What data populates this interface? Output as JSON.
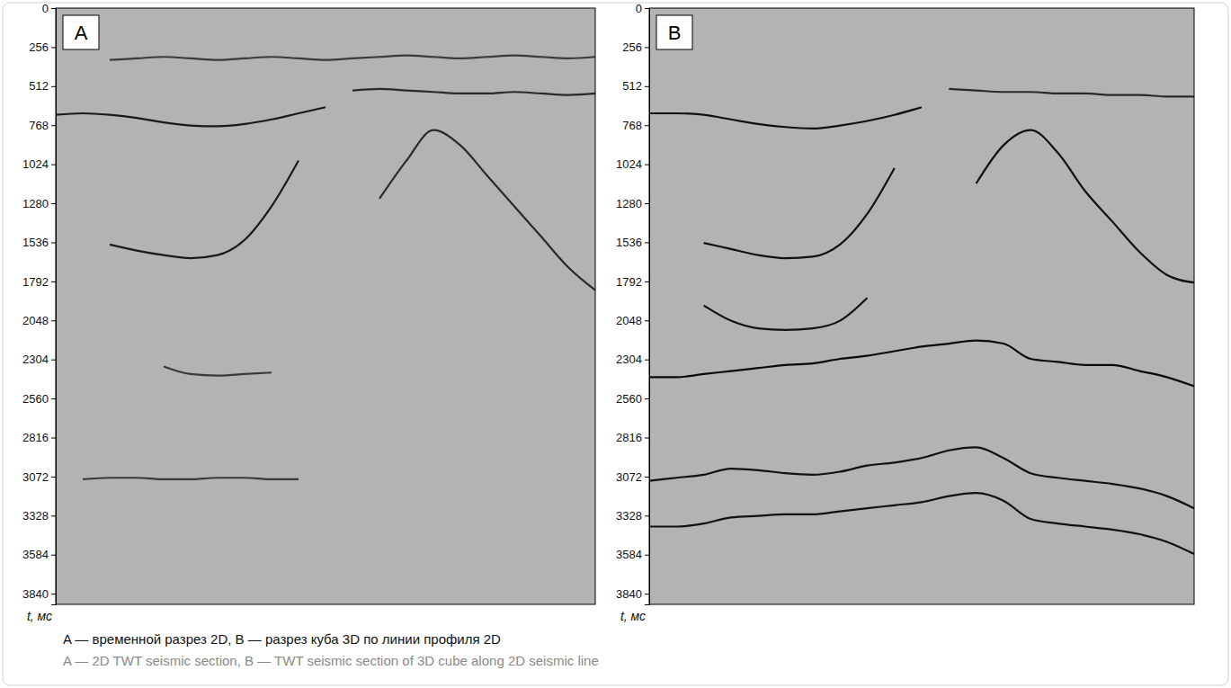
{
  "chart_data": [
    {
      "type": "line",
      "title": "A",
      "ylabel": "t, мс",
      "x": [
        0,
        5,
        10,
        15,
        20,
        25,
        30,
        35,
        40,
        45,
        50,
        55,
        60,
        65,
        70,
        75,
        80,
        85,
        90,
        95,
        100
      ],
      "xlim": [
        0,
        100
      ],
      "ylim": [
        0,
        3910
      ],
      "yticks": [
        0,
        256,
        512,
        768,
        1024,
        1280,
        1536,
        1792,
        2048,
        2304,
        2560,
        2816,
        3072,
        3328,
        3584,
        3840
      ],
      "tick_labels": "y",
      "series": [
        {
          "color": "#3a3a3a",
          "values": [
            null,
            null,
            340,
            330,
            320,
            330,
            340,
            330,
            320,
            330,
            340,
            330,
            320,
            310,
            320,
            330,
            320,
            310,
            320,
            330,
            320
          ]
        },
        {
          "color": "#2a2a2a",
          "values": [
            null,
            null,
            null,
            null,
            null,
            null,
            null,
            null,
            null,
            null,
            null,
            540,
            530,
            540,
            550,
            560,
            560,
            550,
            560,
            570,
            560
          ]
        },
        {
          "color": "#1a1a1a",
          "values": [
            700,
            690,
            700,
            720,
            750,
            770,
            775,
            760,
            730,
            690,
            650,
            null,
            null,
            null,
            null,
            null,
            null,
            null,
            null,
            null,
            null
          ]
        },
        {
          "color": "#2a2a2a",
          "values": [
            null,
            null,
            null,
            null,
            null,
            null,
            null,
            null,
            null,
            null,
            null,
            null,
            1250,
            1000,
            800,
            900,
            1100,
            1300,
            1500,
            1700,
            1850
          ]
        },
        {
          "color": "#1a1a1a",
          "values": [
            null,
            null,
            1550,
            1590,
            1620,
            1640,
            1620,
            1520,
            1300,
            1000,
            null,
            null,
            null,
            null,
            null,
            null,
            null,
            null,
            null,
            null,
            null
          ]
        },
        {
          "color": "#3a3a3a",
          "values": [
            null,
            null,
            null,
            null,
            2350,
            2400,
            2410,
            2400,
            2390,
            null,
            null,
            null,
            null,
            null,
            null,
            null,
            null,
            null,
            null,
            null,
            null
          ]
        },
        {
          "color": "#3a3a3a",
          "values": [
            null,
            3090,
            3080,
            3080,
            3090,
            3090,
            3080,
            3080,
            3090,
            3090,
            null,
            null,
            null,
            null,
            null,
            null,
            null,
            null,
            null,
            null,
            null
          ]
        }
      ]
    },
    {
      "type": "line",
      "title": "B",
      "ylabel": "t, мс",
      "x": [
        0,
        5,
        10,
        15,
        20,
        25,
        30,
        35,
        40,
        45,
        50,
        55,
        60,
        65,
        70,
        75,
        80,
        85,
        90,
        95,
        100
      ],
      "xlim": [
        0,
        100
      ],
      "ylim": [
        0,
        3910
      ],
      "yticks": [
        0,
        256,
        512,
        768,
        1024,
        1280,
        1536,
        1792,
        2048,
        2304,
        2560,
        2816,
        3072,
        3328,
        3584,
        3840
      ],
      "tick_labels": "y",
      "series": [
        {
          "color": "#2a2a2a",
          "values": [
            null,
            null,
            null,
            null,
            null,
            null,
            null,
            null,
            null,
            null,
            null,
            530,
            540,
            550,
            550,
            560,
            560,
            570,
            570,
            580,
            580
          ]
        },
        {
          "color": "#111111",
          "values": [
            690,
            690,
            700,
            730,
            760,
            780,
            790,
            770,
            740,
            700,
            650,
            null,
            null,
            null,
            null,
            null,
            null,
            null,
            null,
            null,
            null
          ]
        },
        {
          "color": "#111111",
          "values": [
            null,
            null,
            null,
            null,
            null,
            null,
            null,
            null,
            null,
            null,
            null,
            null,
            1150,
            900,
            800,
            950,
            1200,
            1400,
            1600,
            1750,
            1800
          ]
        },
        {
          "color": "#111111",
          "values": [
            null,
            null,
            1540,
            1580,
            1620,
            1640,
            1630,
            1550,
            1350,
            1050,
            null,
            null,
            null,
            null,
            null,
            null,
            null,
            null,
            null,
            null,
            null
          ]
        },
        {
          "color": "#111111",
          "values": [
            null,
            null,
            1950,
            2050,
            2100,
            2110,
            2100,
            2050,
            1900,
            null,
            null,
            null,
            null,
            null,
            null,
            null,
            null,
            null,
            null,
            null,
            null
          ]
        },
        {
          "color": "#0a0a0a",
          "values": [
            2420,
            2420,
            2400,
            2380,
            2360,
            2340,
            2330,
            2300,
            2280,
            2250,
            2220,
            2200,
            2180,
            2200,
            2300,
            2320,
            2340,
            2340,
            2380,
            2420,
            2480
          ]
        },
        {
          "color": "#111111",
          "values": [
            3100,
            3080,
            3060,
            3020,
            3030,
            3050,
            3060,
            3040,
            3000,
            2980,
            2950,
            2900,
            2880,
            2950,
            3050,
            3080,
            3100,
            3120,
            3150,
            3200,
            3280
          ]
        },
        {
          "color": "#111111",
          "values": [
            3400,
            3400,
            3380,
            3340,
            3330,
            3320,
            3320,
            3300,
            3280,
            3260,
            3240,
            3200,
            3180,
            3230,
            3350,
            3380,
            3400,
            3420,
            3450,
            3500,
            3580
          ]
        }
      ]
    }
  ],
  "captions": [
    "A — временной разрез 2D, B — разрез куба 3D по линии профиля 2D",
    "A — 2D TWT seismic section, B — TWT seismic section of 3D cube along 2D seismic line"
  ]
}
